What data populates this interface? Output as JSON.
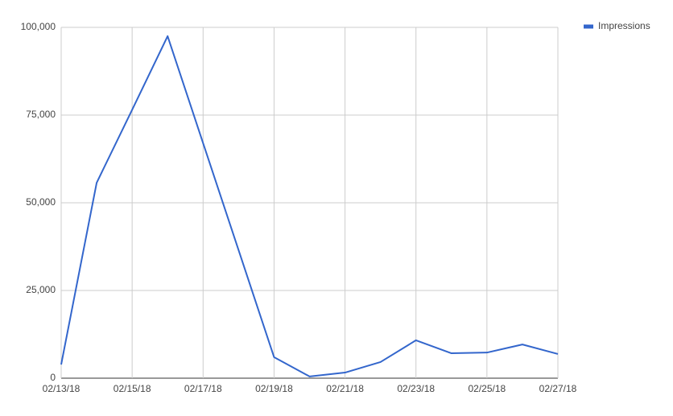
{
  "chart_data": {
    "type": "line",
    "categories": [
      "02/13/18",
      null,
      "02/15/18",
      null,
      "02/17/18",
      null,
      "02/19/18",
      null,
      "02/21/18",
      null,
      "02/23/18",
      null,
      "02/25/18",
      null,
      "02/27/18"
    ],
    "series": [
      {
        "name": "Impressions",
        "color": "#3366cc",
        "values": [
          3900,
          55700,
          76500,
          97500,
          67000,
          36500,
          6000,
          500,
          1600,
          4600,
          10800,
          7100,
          7300,
          9600,
          6900
        ]
      }
    ],
    "ylim": [
      0,
      100000
    ],
    "yticks": [
      0,
      {
        "value": 25000,
        "label": "25,000"
      },
      {
        "value": 50000,
        "label": "50,000"
      },
      {
        "value": 75000,
        "label": "75,000"
      },
      {
        "value": 100000,
        "label": "100,000"
      }
    ],
    "grid": true,
    "legend": "top-right"
  }
}
